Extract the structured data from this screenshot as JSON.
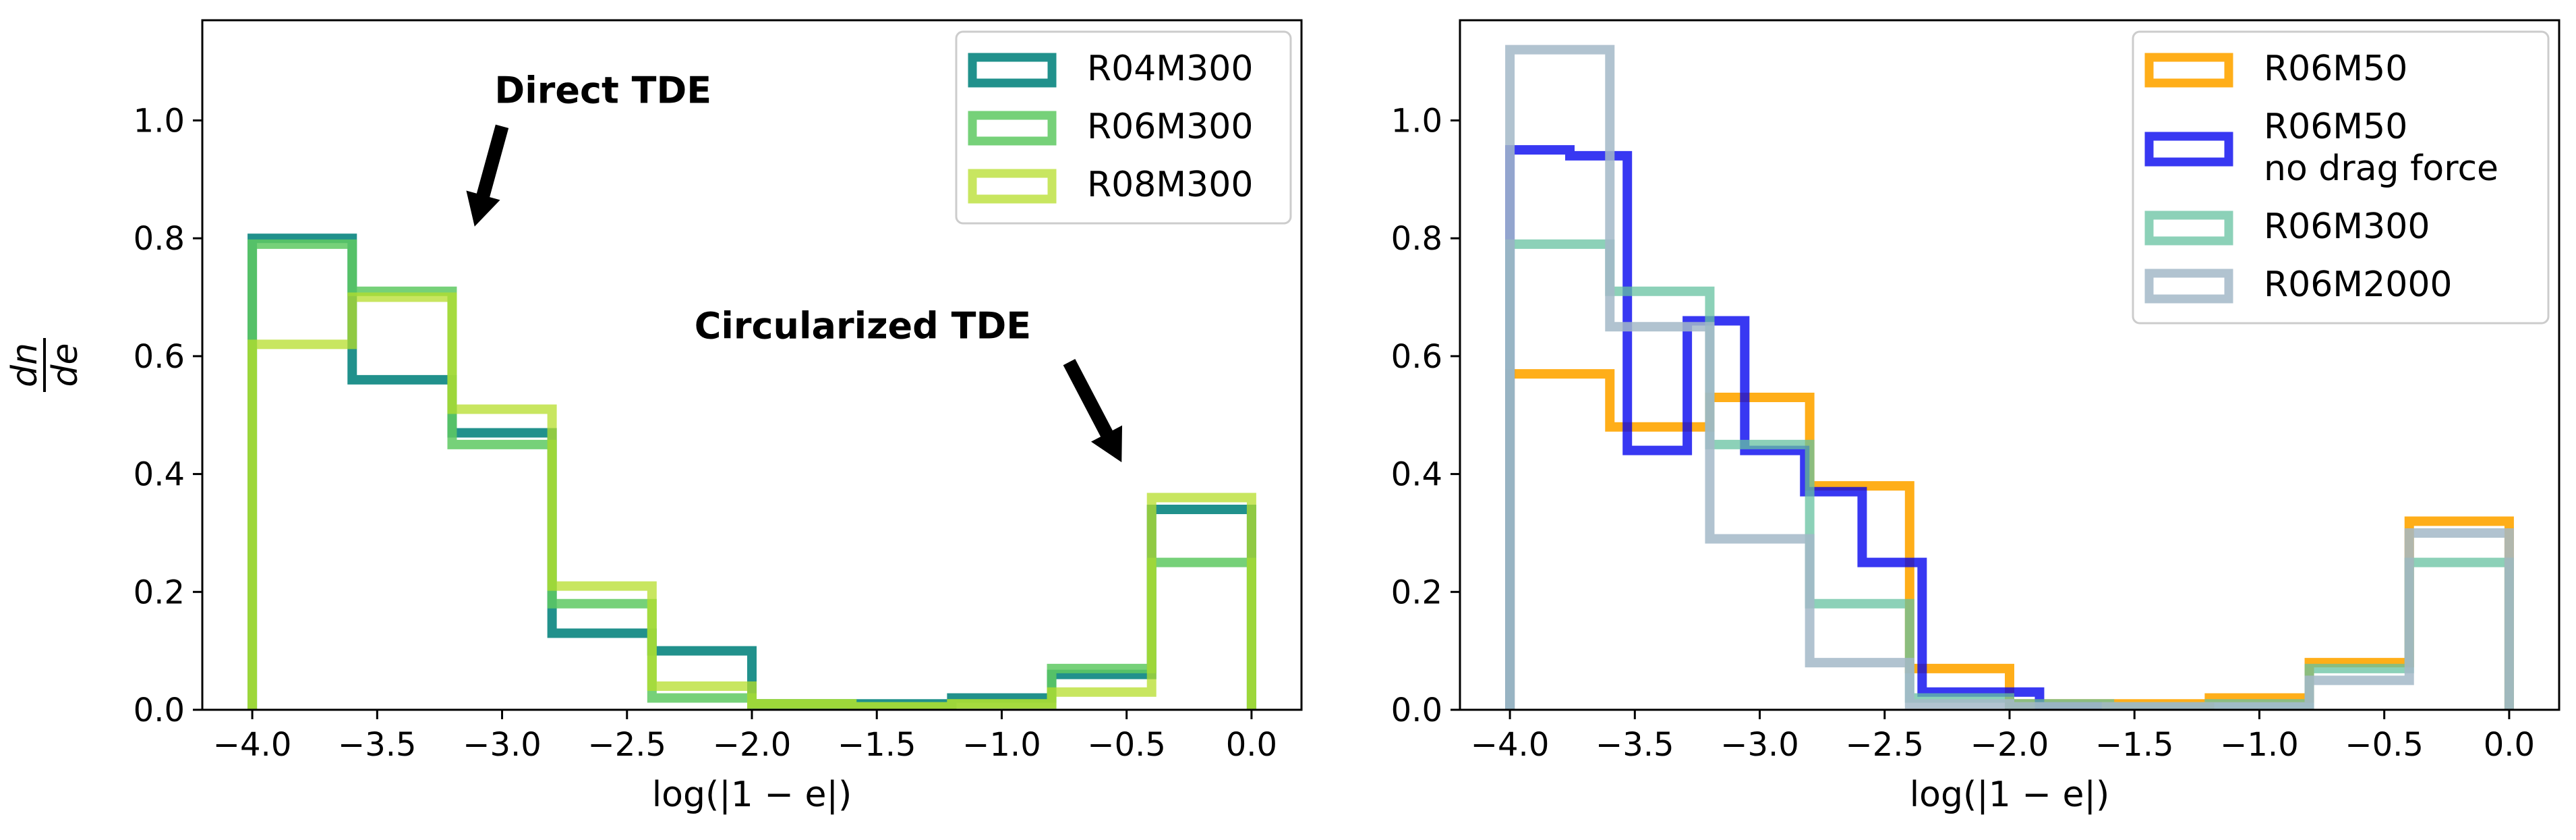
{
  "chart_data": [
    {
      "type": "histogram-step",
      "xlabel": "log(|1 − e|)",
      "ylabel_num": "dn",
      "ylabel_den": "de",
      "xlim": [
        -4.2,
        0.2
      ],
      "ylim": [
        0,
        1.17
      ],
      "xticks": [
        -4.0,
        -3.5,
        -3.0,
        -2.5,
        -2.0,
        -1.5,
        -1.0,
        -0.5,
        0.0
      ],
      "xtick_labels": [
        "−4.0",
        "−3.5",
        "−3.0",
        "−2.5",
        "−2.0",
        "−1.5",
        "−1.0",
        "−0.5",
        "0.0"
      ],
      "yticks": [
        0.0,
        0.2,
        0.4,
        0.6,
        0.8,
        1.0
      ],
      "ytick_labels": [
        "0.0",
        "0.2",
        "0.4",
        "0.6",
        "0.8",
        "1.0"
      ],
      "legend_position": "top-right",
      "annotations": [
        {
          "text": "Direct TDE",
          "text_at": [
            -3.03,
            1.03
          ],
          "arrow_from": [
            -3.0,
            0.99
          ],
          "arrow_to": [
            -3.11,
            0.82
          ]
        },
        {
          "text": "Circularized TDE",
          "text_at": [
            -2.23,
            0.63
          ],
          "arrow_from": [
            -0.73,
            0.59
          ],
          "arrow_to": [
            -0.52,
            0.42
          ]
        }
      ],
      "series": [
        {
          "name": "R04M300",
          "color": "#21918c",
          "edges": [
            -4.0,
            -3.6,
            -3.2,
            -2.8,
            -2.4,
            -2.0,
            -1.6,
            -1.2,
            -0.8,
            -0.4,
            0.0
          ],
          "values": [
            0.8,
            0.56,
            0.47,
            0.13,
            0.1,
            0.01,
            0.01,
            0.02,
            0.06,
            0.34
          ]
        },
        {
          "name": "R06M300",
          "color": "#5ec962",
          "edges": [
            -4.0,
            -3.6,
            -3.2,
            -2.8,
            -2.4,
            -2.0,
            -1.6,
            -1.2,
            -0.8,
            -0.4,
            0.0
          ],
          "values": [
            0.79,
            0.71,
            0.45,
            0.18,
            0.02,
            0.01,
            0.005,
            0.01,
            0.07,
            0.25
          ]
        },
        {
          "name": "R08M300",
          "color": "#b5de2b",
          "edges": [
            -4.0,
            -3.6,
            -3.2,
            -2.8,
            -2.4,
            -2.0,
            -1.6,
            -1.2,
            -0.8,
            -0.4,
            0.0
          ],
          "values": [
            0.62,
            0.7,
            0.51,
            0.21,
            0.04,
            0.01,
            0.005,
            0.01,
            0.03,
            0.36
          ]
        }
      ]
    },
    {
      "type": "histogram-step",
      "xlabel": "log(|1 − e|)",
      "xlim": [
        -4.2,
        0.2
      ],
      "ylim": [
        0,
        1.17
      ],
      "xticks": [
        -4.0,
        -3.5,
        -3.0,
        -2.5,
        -2.0,
        -1.5,
        -1.0,
        -0.5,
        0.0
      ],
      "xtick_labels": [
        "−4.0",
        "−3.5",
        "−3.0",
        "−2.5",
        "−2.0",
        "−1.5",
        "−1.0",
        "−0.5",
        "0.0"
      ],
      "yticks": [
        0.0,
        0.2,
        0.4,
        0.6,
        0.8,
        1.0
      ],
      "ytick_labels": [
        "0.0",
        "0.2",
        "0.4",
        "0.6",
        "0.8",
        "1.0"
      ],
      "legend_position": "top-right",
      "series": [
        {
          "name": "R06M50",
          "color": "#ffa500",
          "edges": [
            -4.0,
            -3.6,
            -3.2,
            -2.8,
            -2.4,
            -2.0,
            -1.6,
            -1.2,
            -0.8,
            -0.4,
            0.0
          ],
          "values": [
            0.57,
            0.48,
            0.53,
            0.38,
            0.07,
            0.01,
            0.01,
            0.02,
            0.08,
            0.32
          ]
        },
        {
          "name": "R06M50",
          "name_line2": "no drag force",
          "color": "#0000ee",
          "edges": [
            -4.0,
            -3.76,
            -3.53,
            -3.29,
            -3.06,
            -2.82,
            -2.59,
            -2.35,
            -2.12,
            -1.88,
            -1.65
          ],
          "values": [
            0.95,
            0.94,
            0.44,
            0.66,
            0.44,
            0.37,
            0.25,
            0.03,
            0.03,
            0.005
          ]
        },
        {
          "name": "R06M300",
          "color": "#66c2a0",
          "edges": [
            -4.0,
            -3.6,
            -3.2,
            -2.8,
            -2.4,
            -2.0,
            -1.6,
            -1.2,
            -0.8,
            -0.4,
            0.0
          ],
          "values": [
            0.79,
            0.71,
            0.45,
            0.18,
            0.02,
            0.01,
            0.005,
            0.01,
            0.07,
            0.25
          ]
        },
        {
          "name": "R06M2000",
          "color": "#a3b8c8",
          "edges": [
            -4.0,
            -3.6,
            -3.2,
            -2.8,
            -2.4,
            -2.0,
            -1.6,
            -1.2,
            -0.8,
            -0.4,
            0.0
          ],
          "values": [
            1.12,
            0.65,
            0.29,
            0.08,
            0.01,
            0.005,
            0.005,
            0.005,
            0.05,
            0.3
          ]
        }
      ]
    }
  ]
}
